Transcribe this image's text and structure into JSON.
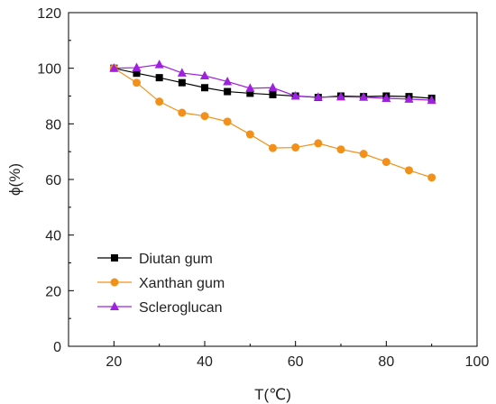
{
  "chart_data": {
    "type": "line",
    "xlabel": "T(℃)",
    "ylabel": "ϕ(%)",
    "xlim": [
      10,
      100
    ],
    "ylim": [
      0,
      120
    ],
    "x_ticks": [
      20,
      40,
      60,
      80,
      100
    ],
    "y_ticks": [
      0,
      20,
      40,
      60,
      80,
      100,
      120
    ],
    "legend_position": "bottom-left",
    "grid": false,
    "series": [
      {
        "name": "Diutan gum",
        "color": "#000000",
        "marker": "square",
        "x": [
          20,
          25,
          30,
          35,
          40,
          45,
          50,
          55,
          60,
          65,
          70,
          75,
          80,
          85,
          90
        ],
        "y": [
          100,
          98.2,
          96.6,
          94.8,
          93.0,
          91.6,
          91.0,
          90.5,
          90.0,
          89.5,
          90.0,
          89.8,
          90.0,
          89.8,
          89.2
        ]
      },
      {
        "name": "Xanthan gum",
        "color": "#f39019",
        "marker": "circle",
        "x": [
          20,
          25,
          30,
          35,
          40,
          45,
          50,
          55,
          60,
          65,
          70,
          75,
          80,
          85,
          90
        ],
        "y": [
          100,
          94.8,
          88.0,
          84.0,
          82.8,
          80.8,
          76.2,
          71.3,
          71.5,
          73.0,
          70.8,
          69.2,
          66.3,
          63.3,
          60.7
        ]
      },
      {
        "name": "Scleroglucan",
        "color": "#a020e0",
        "marker": "triangle",
        "x": [
          20,
          25,
          30,
          35,
          40,
          45,
          50,
          55,
          60,
          65,
          70,
          75,
          80,
          85,
          90
        ],
        "y": [
          100,
          100.2,
          101.3,
          98.3,
          97.3,
          95.2,
          92.8,
          93.0,
          90.0,
          89.6,
          89.7,
          89.6,
          89.2,
          88.9,
          88.5
        ]
      }
    ]
  }
}
